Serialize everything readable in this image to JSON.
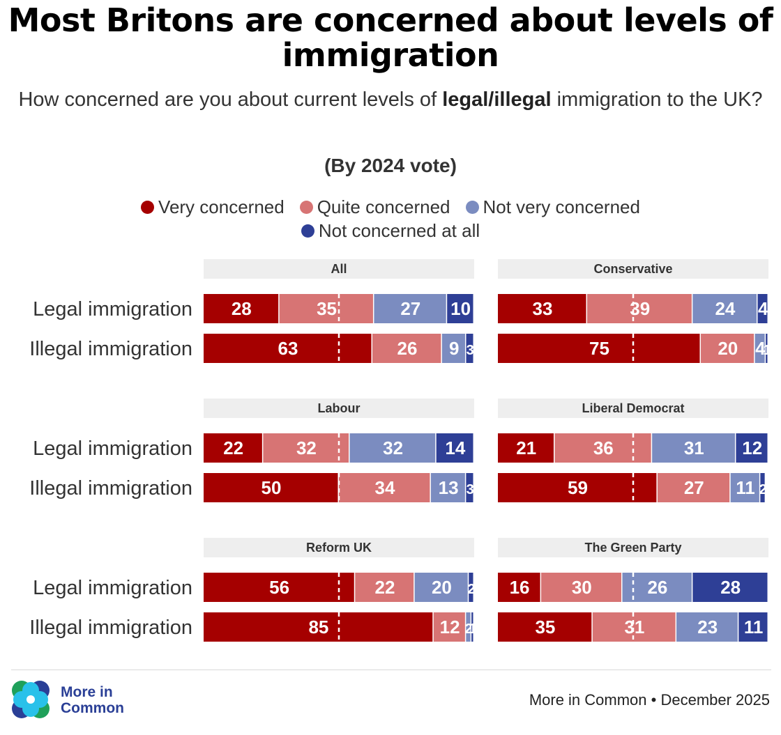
{
  "header": {
    "title": "Most Britons are concerned about levels of immigration",
    "subtitle_pre": "How concerned are you about current levels of ",
    "subtitle_bold": "legal/illegal",
    "subtitle_post": " immigration to the UK?",
    "byline": "(By 2024 vote)"
  },
  "legend": {
    "items": [
      {
        "label": "Very concerned",
        "color": "#a50000"
      },
      {
        "label": "Quite concerned",
        "color": "#d77474"
      },
      {
        "label": "Not very concerned",
        "color": "#7b8cc0"
      },
      {
        "label": "Not concerned at all",
        "color": "#2e3f96"
      }
    ]
  },
  "footer": {
    "logo_line1": "More in",
    "logo_line2": "Common",
    "credit": "More in Common • December 2025"
  },
  "chart_data": {
    "type": "bar",
    "orientation": "horizontal",
    "stacked": true,
    "title": "Most Britons are concerned about levels of immigration",
    "subtitle": "How concerned are you about current levels of legal/illegal immigration to the UK? (By 2024 vote)",
    "xlim": [
      0,
      100
    ],
    "reference_line": 50,
    "series_names": [
      "Very concerned",
      "Quite concerned",
      "Not very concerned",
      "Not concerned at all"
    ],
    "colors": [
      "#a50000",
      "#d77474",
      "#7b8cc0",
      "#2e3f96"
    ],
    "categories": [
      "Legal immigration",
      "Illegal immigration"
    ],
    "panels": [
      {
        "name": "All",
        "rows": [
          {
            "category": "Legal immigration",
            "values": [
              28,
              35,
              27,
              10
            ]
          },
          {
            "category": "Illegal immigration",
            "values": [
              63,
              26,
              9,
              3
            ]
          }
        ]
      },
      {
        "name": "Conservative",
        "rows": [
          {
            "category": "Legal immigration",
            "values": [
              33,
              39,
              24,
              4
            ]
          },
          {
            "category": "Illegal immigration",
            "values": [
              75,
              20,
              4,
              1
            ]
          }
        ]
      },
      {
        "name": "Labour",
        "rows": [
          {
            "category": "Legal immigration",
            "values": [
              22,
              32,
              32,
              14
            ]
          },
          {
            "category": "Illegal immigration",
            "values": [
              50,
              34,
              13,
              3
            ]
          }
        ]
      },
      {
        "name": "Liberal Democrat",
        "rows": [
          {
            "category": "Legal immigration",
            "values": [
              21,
              36,
              31,
              12
            ]
          },
          {
            "category": "Illegal immigration",
            "values": [
              59,
              27,
              11,
              2
            ]
          }
        ]
      },
      {
        "name": "Reform UK",
        "rows": [
          {
            "category": "Legal immigration",
            "values": [
              56,
              22,
              20,
              2
            ]
          },
          {
            "category": "Illegal immigration",
            "values": [
              85,
              12,
              2,
              1
            ]
          }
        ]
      },
      {
        "name": "The Green Party",
        "rows": [
          {
            "category": "Legal immigration",
            "values": [
              16,
              30,
              26,
              28
            ]
          },
          {
            "category": "Illegal immigration",
            "values": [
              35,
              31,
              23,
              11
            ]
          }
        ]
      }
    ]
  }
}
